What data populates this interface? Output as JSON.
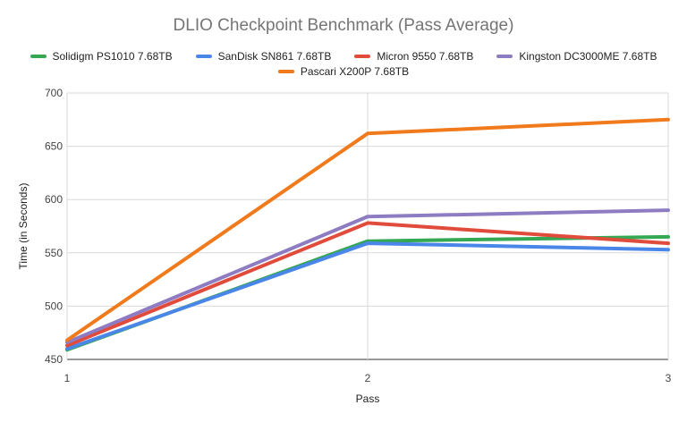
{
  "chart_data": {
    "type": "line",
    "title": "DLIO Checkpoint Benchmark (Pass Average)",
    "xlabel": "Pass",
    "ylabel": "Time (in Seconds)",
    "x": [
      1,
      2,
      3
    ],
    "x_tick_labels": [
      "1",
      "2",
      "3"
    ],
    "ylim": [
      450,
      700
    ],
    "y_ticks": [
      450,
      500,
      550,
      600,
      650,
      700
    ],
    "grid": true,
    "legend_position": "top",
    "series": [
      {
        "name": "Solidigm PS1010 7.68TB",
        "color": "#34a853",
        "values": [
          459,
          561,
          565
        ]
      },
      {
        "name": "SanDisk SN861 7.68TB",
        "color": "#4a86e8",
        "values": [
          460,
          559,
          553
        ]
      },
      {
        "name": "Micron 9550 7.68TB",
        "color": "#e04b3c",
        "values": [
          463,
          578,
          559
        ]
      },
      {
        "name": "Kingston DC3000ME 7.68TB",
        "color": "#8e7cc3",
        "values": [
          466,
          584,
          590
        ]
      },
      {
        "name": "Pascari X200P 7.68TB",
        "color": "#f07a1c",
        "values": [
          468,
          662,
          675
        ]
      }
    ]
  }
}
